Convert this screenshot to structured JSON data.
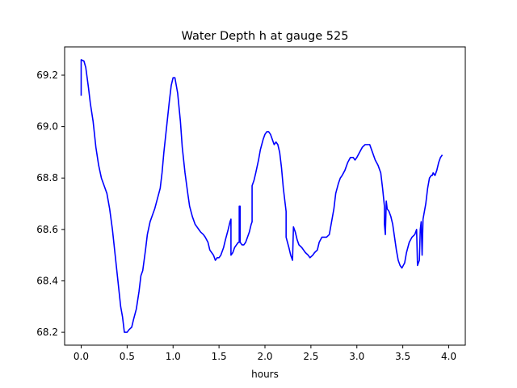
{
  "chart_data": {
    "type": "line",
    "title": "Water Depth h at gauge 525",
    "xlabel": "hours",
    "ylabel": "",
    "xlim": [
      -0.18,
      4.18
    ],
    "ylim": [
      68.15,
      69.31
    ],
    "xticks": [
      0.0,
      0.5,
      1.0,
      1.5,
      2.0,
      2.5,
      3.0,
      3.5,
      4.0
    ],
    "xtick_labels": [
      "0.0",
      "0.5",
      "1.0",
      "1.5",
      "2.0",
      "2.5",
      "3.0",
      "3.5",
      "4.0"
    ],
    "yticks": [
      68.2,
      68.4,
      68.6,
      68.8,
      69.0,
      69.2
    ],
    "ytick_labels": [
      "68.2",
      "68.4",
      "68.6",
      "68.8",
      "69.0",
      "69.2"
    ],
    "grid": false,
    "series": [
      {
        "color": "#0000ff",
        "points": [
          [
            0.0,
            69.12
          ],
          [
            0.0,
            69.26
          ],
          [
            0.03,
            69.255
          ],
          [
            0.05,
            69.23
          ],
          [
            0.08,
            69.15
          ],
          [
            0.1,
            69.09
          ],
          [
            0.13,
            69.02
          ],
          [
            0.16,
            68.92
          ],
          [
            0.19,
            68.85
          ],
          [
            0.22,
            68.8
          ],
          [
            0.25,
            68.77
          ],
          [
            0.28,
            68.74
          ],
          [
            0.31,
            68.68
          ],
          [
            0.34,
            68.6
          ],
          [
            0.37,
            68.5
          ],
          [
            0.4,
            68.4
          ],
          [
            0.43,
            68.3
          ],
          [
            0.45,
            68.26
          ],
          [
            0.47,
            68.2
          ],
          [
            0.5,
            68.2
          ],
          [
            0.52,
            68.21
          ],
          [
            0.55,
            68.22
          ],
          [
            0.57,
            68.25
          ],
          [
            0.6,
            68.29
          ],
          [
            0.63,
            68.36
          ],
          [
            0.65,
            68.42
          ],
          [
            0.67,
            68.44
          ],
          [
            0.7,
            68.52
          ],
          [
            0.72,
            68.58
          ],
          [
            0.75,
            68.63
          ],
          [
            0.78,
            68.66
          ],
          [
            0.8,
            68.68
          ],
          [
            0.83,
            68.72
          ],
          [
            0.86,
            68.76
          ],
          [
            0.88,
            68.82
          ],
          [
            0.9,
            68.9
          ],
          [
            0.93,
            69.0
          ],
          [
            0.96,
            69.1
          ],
          [
            0.98,
            69.16
          ],
          [
            1.0,
            69.19
          ],
          [
            1.02,
            69.19
          ],
          [
            1.05,
            69.13
          ],
          [
            1.08,
            69.02
          ],
          [
            1.1,
            68.92
          ],
          [
            1.13,
            68.82
          ],
          [
            1.16,
            68.74
          ],
          [
            1.18,
            68.69
          ],
          [
            1.21,
            68.65
          ],
          [
            1.24,
            68.62
          ],
          [
            1.26,
            68.61
          ],
          [
            1.28,
            68.6
          ],
          [
            1.3,
            68.59
          ],
          [
            1.33,
            68.58
          ],
          [
            1.35,
            68.57
          ],
          [
            1.38,
            68.55
          ],
          [
            1.4,
            68.52
          ],
          [
            1.42,
            68.51
          ],
          [
            1.44,
            68.5
          ],
          [
            1.46,
            68.48
          ],
          [
            1.48,
            68.49
          ],
          [
            1.5,
            68.49
          ],
          [
            1.52,
            68.5
          ],
          [
            1.55,
            68.53
          ],
          [
            1.57,
            68.56
          ],
          [
            1.6,
            68.6
          ],
          [
            1.62,
            68.63
          ],
          [
            1.63,
            68.64
          ],
          [
            1.63,
            68.5
          ],
          [
            1.65,
            68.51
          ],
          [
            1.67,
            68.53
          ],
          [
            1.69,
            68.54
          ],
          [
            1.71,
            68.55
          ],
          [
            1.72,
            68.55
          ],
          [
            1.72,
            68.69
          ],
          [
            1.73,
            68.69
          ],
          [
            1.73,
            68.55
          ],
          [
            1.75,
            68.54
          ],
          [
            1.77,
            68.54
          ],
          [
            1.79,
            68.55
          ],
          [
            1.81,
            68.57
          ],
          [
            1.83,
            68.59
          ],
          [
            1.85,
            68.62
          ],
          [
            1.86,
            68.63
          ],
          [
            1.86,
            68.77
          ],
          [
            1.88,
            68.79
          ],
          [
            1.9,
            68.82
          ],
          [
            1.93,
            68.87
          ],
          [
            1.95,
            68.91
          ],
          [
            1.98,
            68.95
          ],
          [
            2.0,
            68.97
          ],
          [
            2.02,
            68.98
          ],
          [
            2.04,
            68.98
          ],
          [
            2.06,
            68.97
          ],
          [
            2.08,
            68.95
          ],
          [
            2.1,
            68.93
          ],
          [
            2.12,
            68.94
          ],
          [
            2.14,
            68.93
          ],
          [
            2.16,
            68.9
          ],
          [
            2.18,
            68.84
          ],
          [
            2.2,
            68.76
          ],
          [
            2.22,
            68.7
          ],
          [
            2.23,
            68.67
          ],
          [
            2.23,
            68.57
          ],
          [
            2.26,
            68.53
          ],
          [
            2.28,
            68.5
          ],
          [
            2.3,
            68.48
          ],
          [
            2.31,
            68.61
          ],
          [
            2.33,
            68.59
          ],
          [
            2.35,
            68.56
          ],
          [
            2.37,
            68.54
          ],
          [
            2.4,
            68.53
          ],
          [
            2.42,
            68.52
          ],
          [
            2.44,
            68.51
          ],
          [
            2.47,
            68.5
          ],
          [
            2.49,
            68.49
          ],
          [
            2.52,
            68.5
          ],
          [
            2.54,
            68.51
          ],
          [
            2.57,
            68.52
          ],
          [
            2.59,
            68.55
          ],
          [
            2.62,
            68.57
          ],
          [
            2.65,
            68.57
          ],
          [
            2.67,
            68.57
          ],
          [
            2.7,
            68.58
          ],
          [
            2.72,
            68.62
          ],
          [
            2.75,
            68.68
          ],
          [
            2.77,
            68.74
          ],
          [
            2.8,
            68.78
          ],
          [
            2.82,
            68.8
          ],
          [
            2.84,
            68.81
          ],
          [
            2.87,
            68.83
          ],
          [
            2.9,
            68.86
          ],
          [
            2.93,
            68.88
          ],
          [
            2.96,
            68.88
          ],
          [
            2.98,
            68.87
          ],
          [
            3.0,
            68.88
          ],
          [
            3.03,
            68.9
          ],
          [
            3.06,
            68.92
          ],
          [
            3.09,
            68.93
          ],
          [
            3.12,
            68.93
          ],
          [
            3.14,
            68.93
          ],
          [
            3.17,
            68.9
          ],
          [
            3.2,
            68.87
          ],
          [
            3.23,
            68.85
          ],
          [
            3.26,
            68.82
          ],
          [
            3.28,
            68.76
          ],
          [
            3.3,
            68.69
          ],
          [
            3.3,
            68.62
          ],
          [
            3.31,
            68.58
          ],
          [
            3.32,
            68.71
          ],
          [
            3.33,
            68.68
          ],
          [
            3.35,
            68.67
          ],
          [
            3.37,
            68.65
          ],
          [
            3.39,
            68.62
          ],
          [
            3.41,
            68.57
          ],
          [
            3.43,
            68.52
          ],
          [
            3.45,
            68.48
          ],
          [
            3.47,
            68.46
          ],
          [
            3.49,
            68.45
          ],
          [
            3.52,
            68.47
          ],
          [
            3.54,
            68.51
          ],
          [
            3.57,
            68.55
          ],
          [
            3.6,
            68.57
          ],
          [
            3.63,
            68.58
          ],
          [
            3.65,
            68.6
          ],
          [
            3.66,
            68.46
          ],
          [
            3.68,
            68.48
          ],
          [
            3.69,
            68.6
          ],
          [
            3.7,
            68.63
          ],
          [
            3.71,
            68.5
          ],
          [
            3.72,
            68.64
          ],
          [
            3.73,
            68.66
          ],
          [
            3.75,
            68.7
          ],
          [
            3.77,
            68.76
          ],
          [
            3.79,
            68.8
          ],
          [
            3.81,
            68.81
          ],
          [
            3.82,
            68.81
          ],
          [
            3.83,
            68.82
          ],
          [
            3.85,
            68.81
          ],
          [
            3.87,
            68.83
          ],
          [
            3.89,
            68.86
          ],
          [
            3.91,
            68.88
          ],
          [
            3.93,
            68.89
          ]
        ]
      }
    ]
  }
}
